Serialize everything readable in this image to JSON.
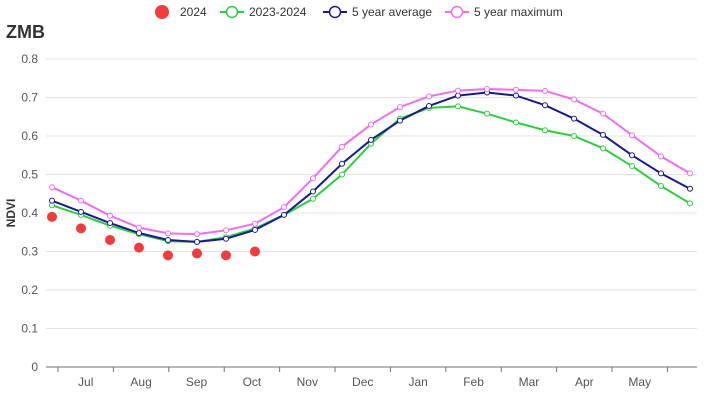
{
  "chart_data": {
    "type": "line",
    "title": "ZMB",
    "ylabel": "NDVI",
    "xlabel": "",
    "ylim": [
      0,
      0.8
    ],
    "yticks": [
      "0",
      "0.1",
      "0.2",
      "0.3",
      "0.4",
      "0.5",
      "0.6",
      "0.7",
      "0.8"
    ],
    "categories": [
      "Jul",
      "Aug",
      "Sep",
      "Oct",
      "Nov",
      "Dec",
      "Jan",
      "Feb",
      "Mar",
      "Apr",
      "May"
    ],
    "grid": true,
    "legend_position": "top",
    "series": [
      {
        "name": "2024",
        "style": "scatter",
        "color": "#f03c3c",
        "x": [
          0,
          1,
          2,
          3,
          4,
          5,
          6,
          7
        ],
        "values": [
          0.39,
          0.36,
          0.33,
          0.31,
          0.29,
          0.295,
          0.29,
          0.3
        ]
      },
      {
        "name": "2023-2024",
        "style": "line",
        "color": "#2ecc40",
        "x": [
          0,
          1,
          2,
          3,
          4,
          5,
          6,
          7,
          8,
          9,
          10,
          11,
          12,
          13,
          14,
          15,
          16,
          17,
          18,
          19,
          20,
          21,
          22
        ],
        "values": [
          0.42,
          0.395,
          0.367,
          0.345,
          0.327,
          0.325,
          0.337,
          0.36,
          0.395,
          0.437,
          0.5,
          0.58,
          0.645,
          0.673,
          0.677,
          0.658,
          0.635,
          0.615,
          0.6,
          0.568,
          0.522,
          0.47,
          0.425
        ]
      },
      {
        "name": "5 year average",
        "style": "line",
        "color": "#1a1a8c",
        "x": [
          0,
          1,
          2,
          3,
          4,
          5,
          6,
          7,
          8,
          9,
          10,
          11,
          12,
          13,
          14,
          15,
          16,
          17,
          18,
          19,
          20,
          21,
          22
        ],
        "values": [
          0.432,
          0.403,
          0.374,
          0.348,
          0.33,
          0.325,
          0.333,
          0.356,
          0.395,
          0.456,
          0.528,
          0.59,
          0.64,
          0.678,
          0.705,
          0.713,
          0.705,
          0.68,
          0.645,
          0.603,
          0.55,
          0.503,
          0.463
        ]
      },
      {
        "name": "5 year maximum",
        "style": "line",
        "color": "#ee6fee",
        "x": [
          0,
          1,
          2,
          3,
          4,
          5,
          6,
          7,
          8,
          9,
          10,
          11,
          12,
          13,
          14,
          15,
          16,
          17,
          18,
          19,
          20,
          21,
          22
        ],
        "values": [
          0.467,
          0.432,
          0.393,
          0.362,
          0.347,
          0.345,
          0.355,
          0.372,
          0.415,
          0.49,
          0.572,
          0.63,
          0.675,
          0.703,
          0.718,
          0.722,
          0.72,
          0.717,
          0.695,
          0.658,
          0.602,
          0.547,
          0.503
        ]
      }
    ]
  }
}
